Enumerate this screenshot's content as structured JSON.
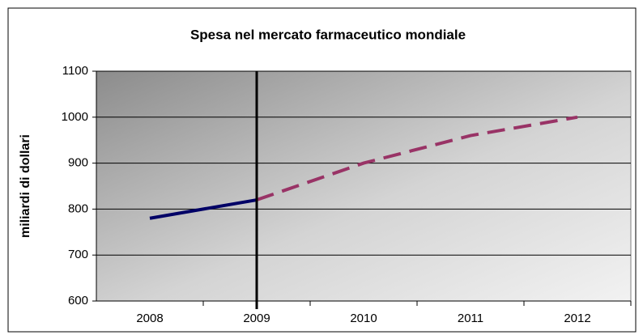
{
  "chart_data": {
    "type": "line",
    "title": "Spesa nel mercato farmaceutico mondiale",
    "y_label": "miliardi di dollari",
    "categories": [
      "2008",
      "2009",
      "2010",
      "2011",
      "2012"
    ],
    "series": [
      {
        "color": "#000066",
        "dash": false,
        "values": [
          780,
          820,
          null,
          null,
          null
        ]
      },
      {
        "color": "#993366",
        "dash": true,
        "values": [
          null,
          820,
          900,
          960,
          1000
        ]
      }
    ],
    "ylim": [
      600,
      1100
    ],
    "yticks": [
      600,
      700,
      800,
      900,
      1000,
      1100
    ],
    "grid": true
  }
}
